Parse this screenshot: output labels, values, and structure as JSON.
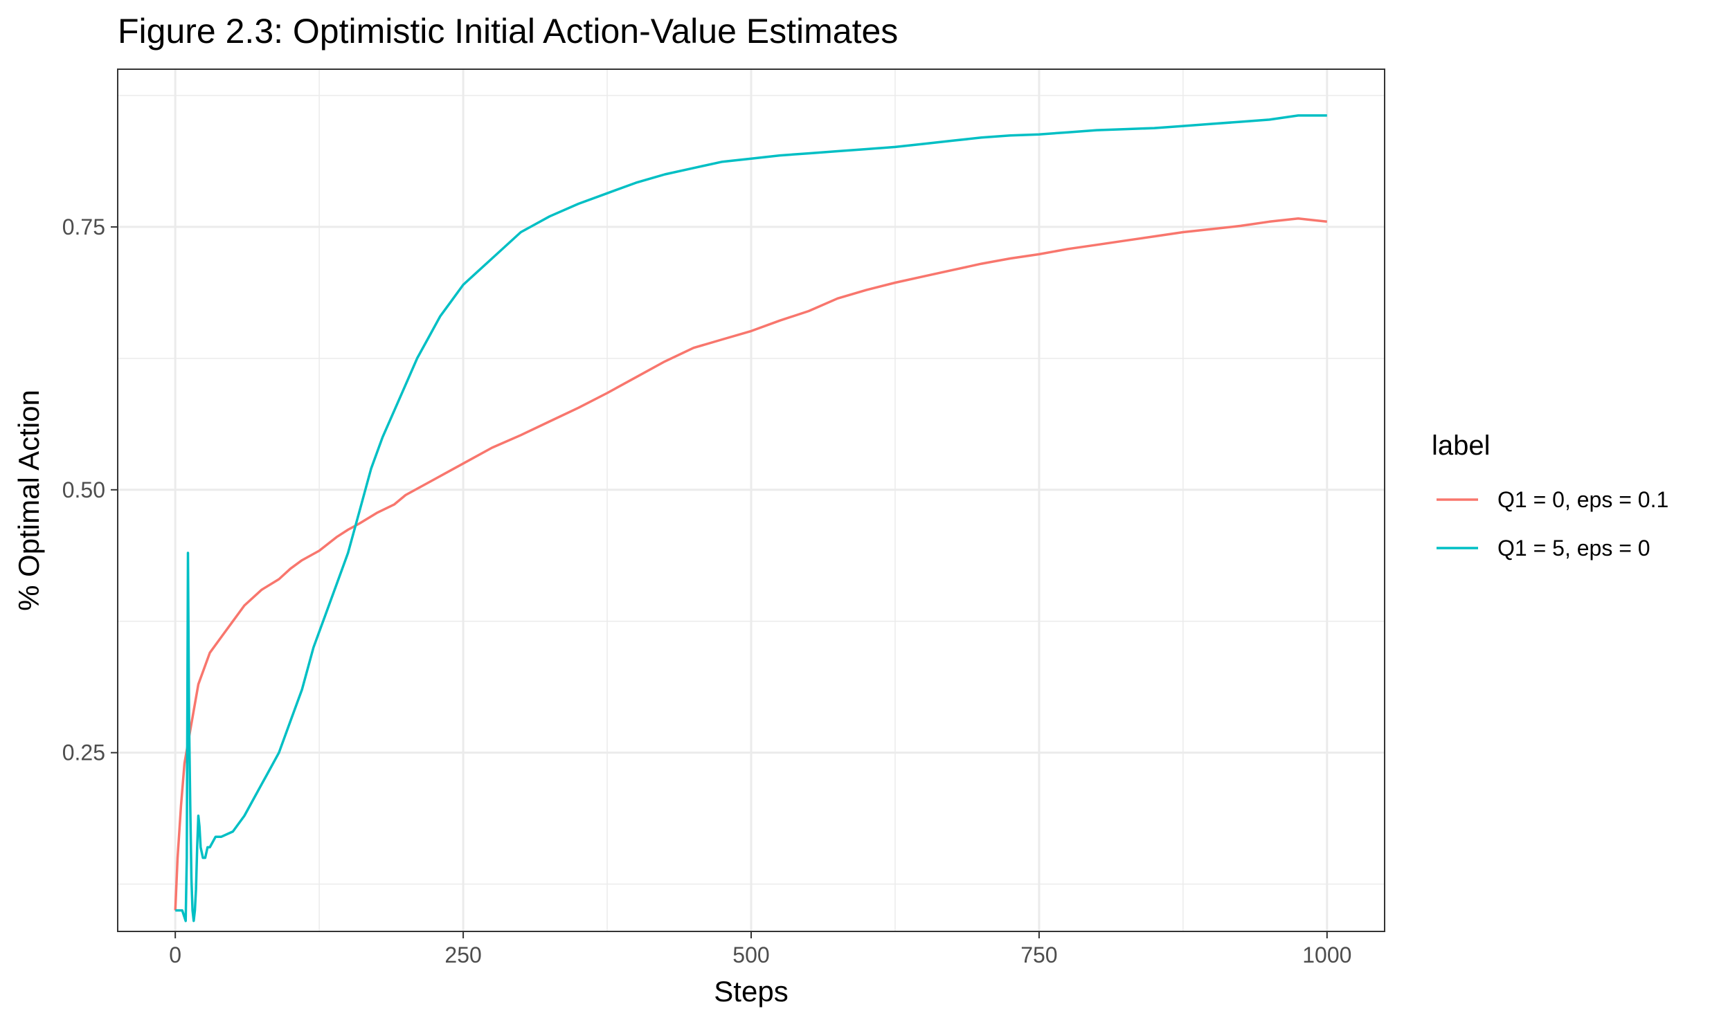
{
  "chart_data": {
    "type": "line",
    "title": "Figure 2.3: Optimistic Initial Action-Value Estimates",
    "xlabel": "Steps",
    "ylabel": "% Optimal Action",
    "xlim": [
      -50,
      1050
    ],
    "ylim": [
      0.08,
      0.9
    ],
    "xticks": [
      0,
      250,
      500,
      750,
      1000
    ],
    "xtick_labels": [
      "0",
      "250",
      "500",
      "750",
      "1000"
    ],
    "yticks": [
      0.25,
      0.5,
      0.75
    ],
    "ytick_labels": [
      "0.25",
      "0.50",
      "0.75"
    ],
    "grid": true,
    "legend": {
      "title": "label",
      "placement": "right"
    },
    "series": [
      {
        "name": "Q1 = 0, eps = 0.1",
        "color": "#F8766D",
        "x": [
          0,
          2,
          5,
          8,
          12,
          16,
          20,
          25,
          30,
          40,
          50,
          60,
          75,
          90,
          100,
          110,
          125,
          140,
          150,
          160,
          175,
          190,
          200,
          225,
          250,
          275,
          300,
          325,
          350,
          375,
          400,
          425,
          450,
          475,
          500,
          525,
          550,
          575,
          600,
          625,
          650,
          675,
          700,
          725,
          750,
          775,
          800,
          825,
          850,
          875,
          900,
          925,
          950,
          975,
          1000
        ],
        "y": [
          0.1,
          0.15,
          0.2,
          0.24,
          0.265,
          0.29,
          0.315,
          0.33,
          0.345,
          0.36,
          0.375,
          0.39,
          0.405,
          0.415,
          0.425,
          0.433,
          0.442,
          0.455,
          0.462,
          0.468,
          0.478,
          0.486,
          0.495,
          0.51,
          0.525,
          0.54,
          0.552,
          0.565,
          0.578,
          0.592,
          0.607,
          0.622,
          0.635,
          0.643,
          0.651,
          0.661,
          0.67,
          0.682,
          0.69,
          0.697,
          0.703,
          0.709,
          0.715,
          0.72,
          0.724,
          0.729,
          0.733,
          0.737,
          0.741,
          0.745,
          0.748,
          0.751,
          0.755,
          0.758,
          0.755
        ]
      },
      {
        "name": "Q1 = 5, eps = 0",
        "color": "#00BFC4",
        "x": [
          0,
          3,
          6,
          9,
          10,
          11,
          12,
          13,
          14,
          15,
          16,
          17,
          18,
          19,
          20,
          21,
          22,
          24,
          26,
          28,
          30,
          35,
          40,
          50,
          60,
          70,
          80,
          90,
          100,
          110,
          120,
          130,
          140,
          150,
          160,
          170,
          180,
          190,
          200,
          210,
          220,
          230,
          240,
          250,
          260,
          275,
          300,
          325,
          350,
          375,
          400,
          425,
          450,
          475,
          500,
          525,
          550,
          575,
          600,
          625,
          650,
          675,
          700,
          725,
          750,
          775,
          800,
          825,
          850,
          875,
          900,
          925,
          950,
          975,
          1000
        ],
        "y": [
          0.1,
          0.1,
          0.1,
          0.09,
          0.15,
          0.44,
          0.28,
          0.2,
          0.13,
          0.1,
          0.09,
          0.1,
          0.12,
          0.16,
          0.19,
          0.18,
          0.16,
          0.15,
          0.15,
          0.16,
          0.16,
          0.17,
          0.17,
          0.175,
          0.19,
          0.21,
          0.23,
          0.25,
          0.28,
          0.31,
          0.35,
          0.38,
          0.41,
          0.44,
          0.48,
          0.52,
          0.55,
          0.575,
          0.6,
          0.625,
          0.645,
          0.665,
          0.68,
          0.695,
          0.705,
          0.72,
          0.745,
          0.76,
          0.772,
          0.782,
          0.792,
          0.8,
          0.806,
          0.812,
          0.815,
          0.818,
          0.82,
          0.822,
          0.824,
          0.826,
          0.829,
          0.832,
          0.835,
          0.837,
          0.838,
          0.84,
          0.842,
          0.843,
          0.844,
          0.846,
          0.848,
          0.85,
          0.852,
          0.856,
          0.856
        ]
      }
    ]
  }
}
